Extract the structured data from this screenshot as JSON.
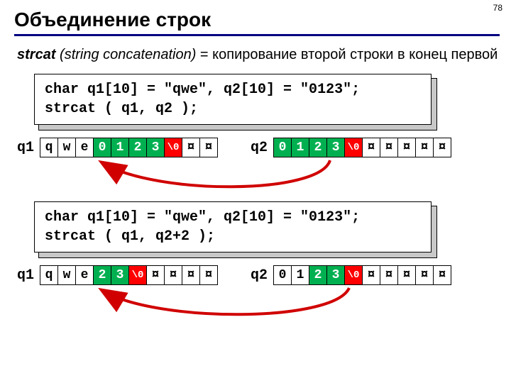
{
  "page_number": "78",
  "title": "Объединение строк",
  "description": {
    "fn": "strcat",
    "paren": "(string concatenation)",
    "rest": " = копирование второй строки в конец первой"
  },
  "colors": {
    "rule": "#000080",
    "green": "#00b050",
    "red": "#ff0000",
    "shadow": "#c8c8c8",
    "white": "#ffffff",
    "black": "#000000",
    "arrow": "#d00000"
  },
  "code1": "char q1[10] = \"qwe\", q2[10] = \"0123\";\nstrcat ( q1, q2 );",
  "code2": "char q1[10] = \"qwe\", q2[10] = \"0123\";\nstrcat ( q1, q2+2 );",
  "example1": {
    "q1_label": "q1",
    "q1_cells": [
      {
        "t": "q",
        "bg": "white"
      },
      {
        "t": "w",
        "bg": "white"
      },
      {
        "t": "e",
        "bg": "white"
      },
      {
        "t": "0",
        "bg": "green"
      },
      {
        "t": "1",
        "bg": "green"
      },
      {
        "t": "2",
        "bg": "green"
      },
      {
        "t": "3",
        "bg": "green"
      },
      {
        "t": "\\0",
        "bg": "red"
      },
      {
        "t": "¤",
        "bg": "white"
      },
      {
        "t": "¤",
        "bg": "white"
      }
    ],
    "q2_label": "q2",
    "q2_cells": [
      {
        "t": "0",
        "bg": "green"
      },
      {
        "t": "1",
        "bg": "green"
      },
      {
        "t": "2",
        "bg": "green"
      },
      {
        "t": "3",
        "bg": "green"
      },
      {
        "t": "\\0",
        "bg": "red"
      },
      {
        "t": "¤",
        "bg": "white"
      },
      {
        "t": "¤",
        "bg": "white"
      },
      {
        "t": "¤",
        "bg": "white"
      },
      {
        "t": "¤",
        "bg": "white"
      },
      {
        "t": "¤",
        "bg": "white"
      }
    ]
  },
  "example2": {
    "q1_label": "q1",
    "q1_cells": [
      {
        "t": "q",
        "bg": "white"
      },
      {
        "t": "w",
        "bg": "white"
      },
      {
        "t": "e",
        "bg": "white"
      },
      {
        "t": "2",
        "bg": "green"
      },
      {
        "t": "3",
        "bg": "green"
      },
      {
        "t": "\\0",
        "bg": "red"
      },
      {
        "t": "¤",
        "bg": "white"
      },
      {
        "t": "¤",
        "bg": "white"
      },
      {
        "t": "¤",
        "bg": "white"
      },
      {
        "t": "¤",
        "bg": "white"
      }
    ],
    "q2_label": "q2",
    "q2_cells": [
      {
        "t": "0",
        "bg": "white"
      },
      {
        "t": "1",
        "bg": "white"
      },
      {
        "t": "2",
        "bg": "green"
      },
      {
        "t": "3",
        "bg": "green"
      },
      {
        "t": "\\0",
        "bg": "red"
      },
      {
        "t": "¤",
        "bg": "white"
      },
      {
        "t": "¤",
        "bg": "white"
      },
      {
        "t": "¤",
        "bg": "white"
      },
      {
        "t": "¤",
        "bg": "white"
      },
      {
        "t": "¤",
        "bg": "white"
      }
    ]
  }
}
